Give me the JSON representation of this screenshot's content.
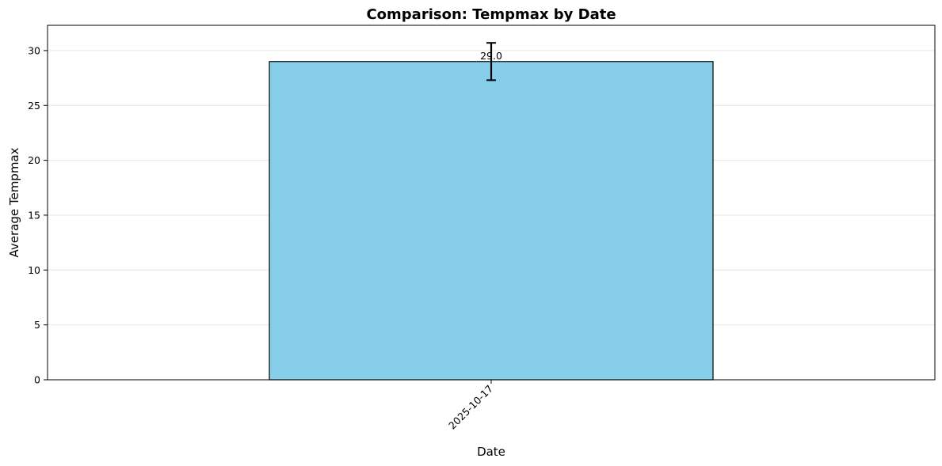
{
  "chart_data": {
    "type": "bar",
    "title": "Comparison: Tempmax by Date",
    "xlabel": "Date",
    "ylabel": "Average Tempmax",
    "categories": [
      "2025-10-17"
    ],
    "values": [
      29.0
    ],
    "error": [
      1.7
    ],
    "data_labels": [
      "29.0"
    ],
    "ylim": [
      0,
      32.3
    ],
    "yticks": [
      0,
      5,
      10,
      15,
      20,
      25,
      30
    ],
    "ytick_labels": [
      "0",
      "5",
      "10",
      "15",
      "20",
      "25",
      "30"
    ],
    "grid": "y",
    "bar_color": "#87CEEB",
    "edge_color": "#000000"
  }
}
